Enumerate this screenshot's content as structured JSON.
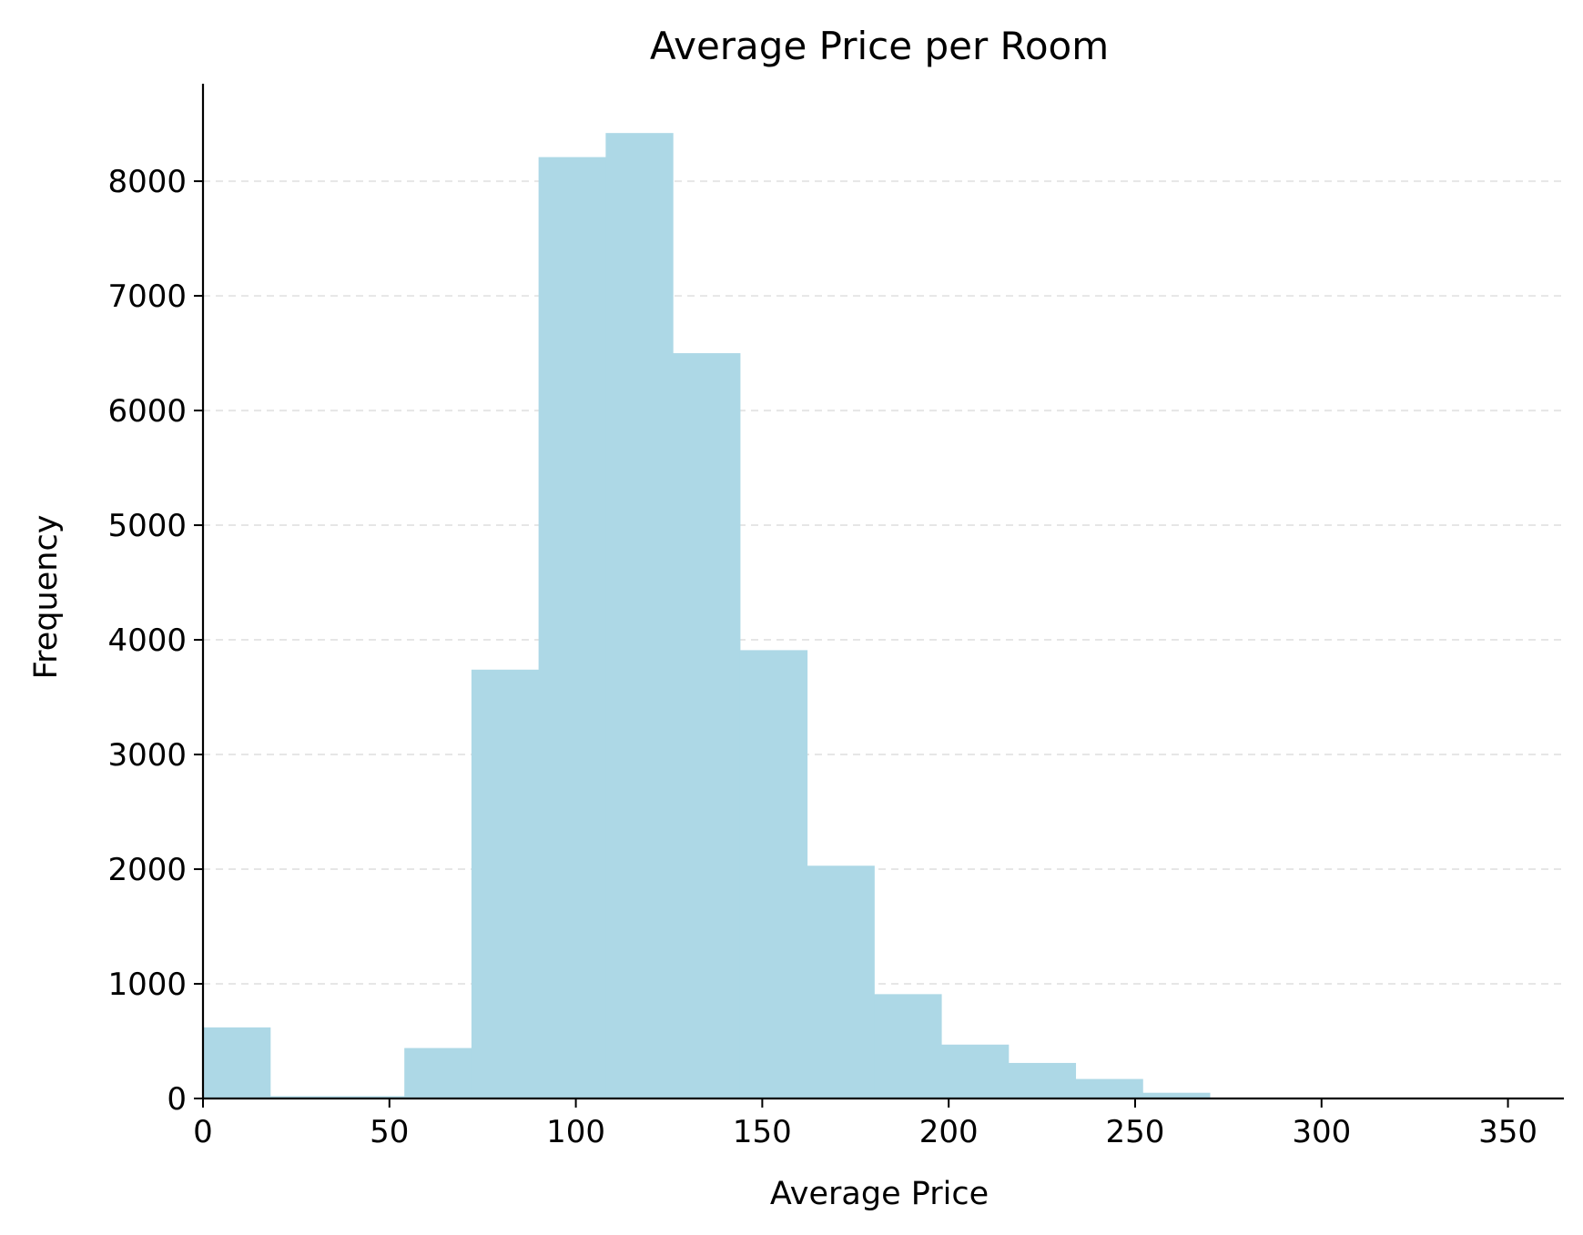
{
  "chart_data": {
    "type": "bar",
    "title": "Average Price per Room",
    "xlabel": "Average Price",
    "ylabel": "Frequency",
    "bin_edges": [
      0,
      18,
      36,
      54,
      72,
      90,
      108,
      126,
      144,
      162,
      180,
      198,
      216,
      234,
      252,
      270
    ],
    "values": [
      620,
      20,
      20,
      440,
      3740,
      8210,
      8420,
      6500,
      3910,
      2030,
      910,
      470,
      310,
      170,
      50,
      20
    ],
    "xlim": [
      0,
      365
    ],
    "ylim": [
      0,
      8850
    ],
    "x_ticks": [
      0,
      50,
      100,
      150,
      200,
      250,
      300,
      350
    ],
    "y_ticks": [
      0,
      1000,
      2000,
      3000,
      4000,
      5000,
      6000,
      7000,
      8000
    ],
    "grid": "y-dashed",
    "bar_color": "#add8e6",
    "grid_color": "#e6e6e6"
  }
}
